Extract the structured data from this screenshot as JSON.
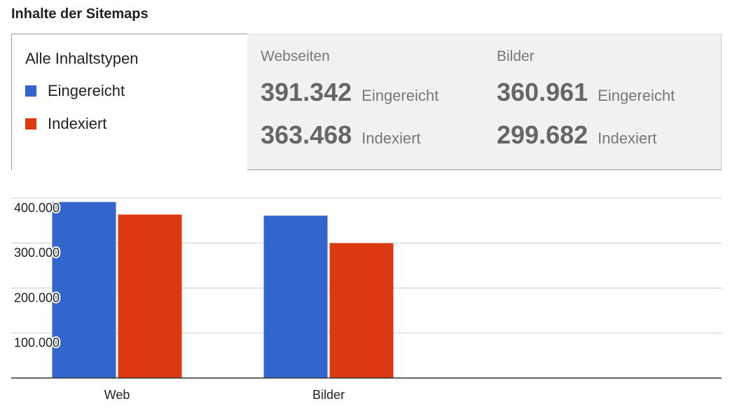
{
  "title": "Inhalte der Sitemaps",
  "tabs": [
    {
      "label": "Alle Inhaltstypen"
    },
    {
      "label": "Webseiten"
    },
    {
      "label": "Bilder"
    }
  ],
  "chart_data": {
    "type": "bar",
    "categories": [
      "Web",
      "Bilder"
    ],
    "series": [
      {
        "name": "Eingereicht",
        "color": "#3366cc",
        "values": [
          391342,
          360961
        ],
        "value_labels": [
          "391.342",
          "360.961"
        ]
      },
      {
        "name": "Indexiert",
        "color": "#dc3912",
        "values": [
          363468,
          299682
        ],
        "value_labels": [
          "363.468",
          "299.682"
        ]
      }
    ],
    "ylim": [
      0,
      400000
    ],
    "yticks": [
      {
        "value": 100000,
        "label": "100.000"
      },
      {
        "value": 200000,
        "label": "200.000"
      },
      {
        "value": 300000,
        "label": "300.000"
      },
      {
        "value": 400000,
        "label": "400.000"
      }
    ],
    "grid": true
  }
}
